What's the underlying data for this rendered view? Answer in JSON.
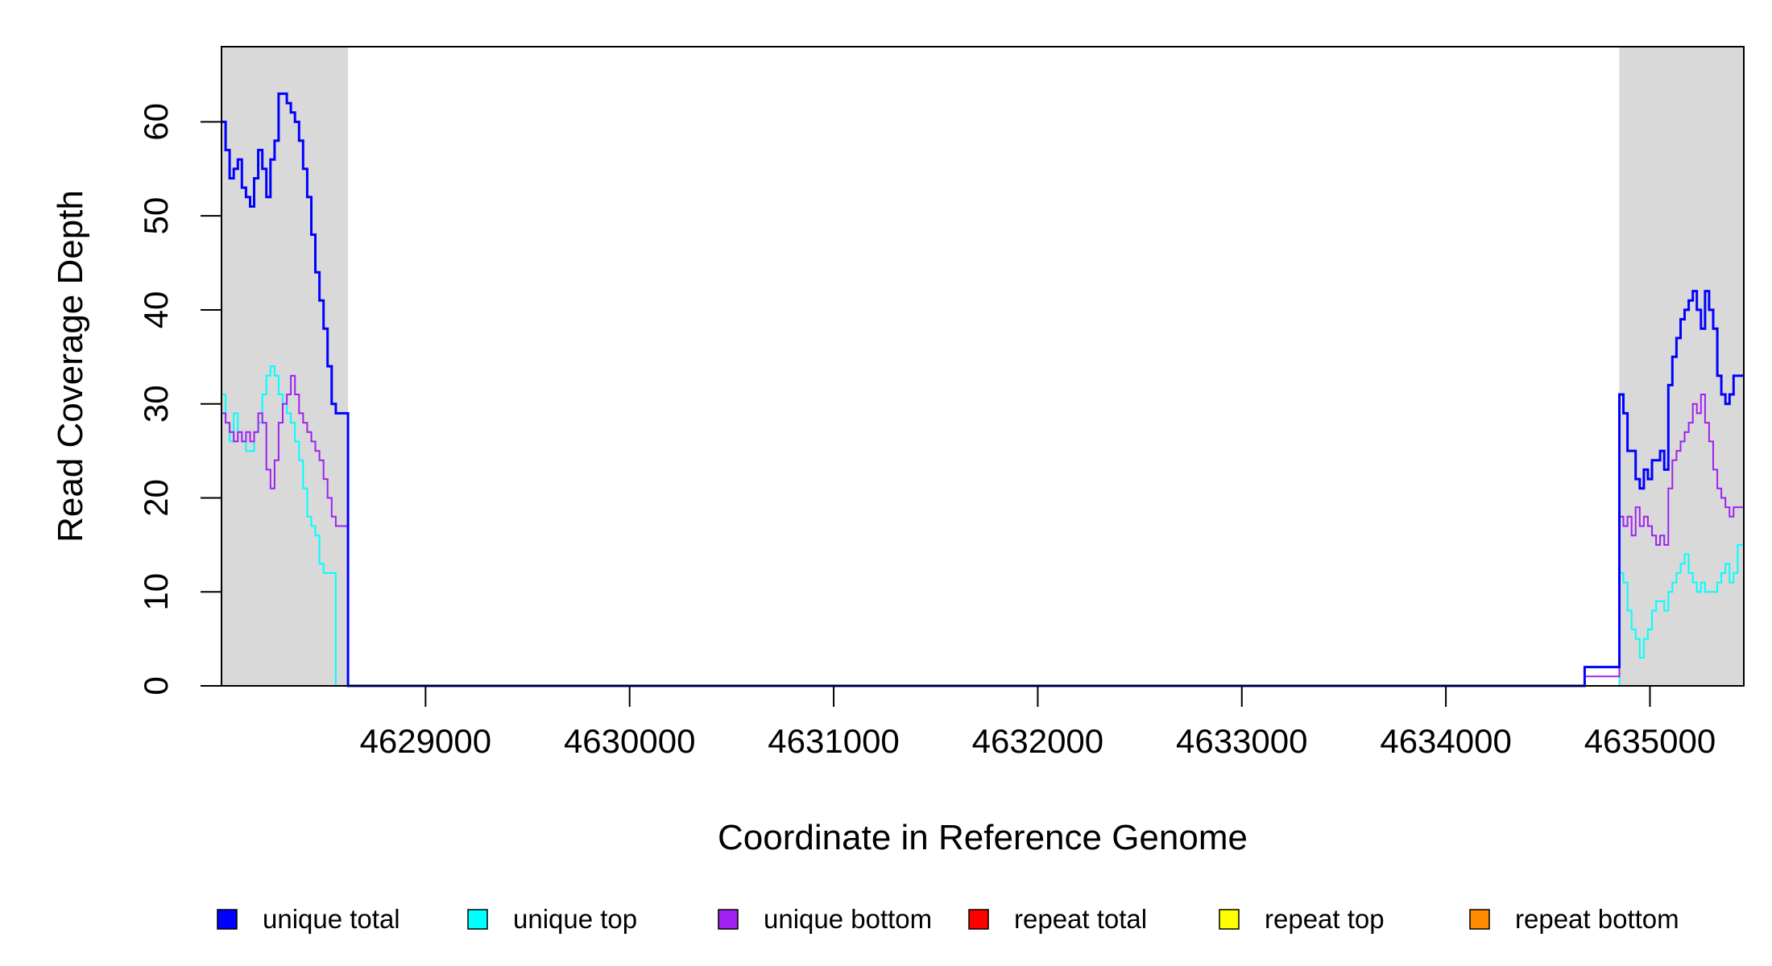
{
  "chart_data": {
    "type": "line",
    "title": "",
    "xlabel": "Coordinate in Reference Genome",
    "ylabel": "Read Coverage Depth",
    "xlim": [
      4628000,
      4635460
    ],
    "ylim": [
      0,
      68
    ],
    "x_ticks": [
      4629000,
      4630000,
      4631000,
      4632000,
      4633000,
      4634000,
      4635000
    ],
    "y_ticks": [
      0,
      10,
      20,
      30,
      40,
      50,
      60
    ],
    "x_tick_labels": [
      "4629000",
      "4630000",
      "4631000",
      "4632000",
      "4633000",
      "4634000",
      "4635000"
    ],
    "y_tick_labels": [
      "0",
      "10",
      "20",
      "30",
      "40",
      "50",
      "60"
    ],
    "grid": false,
    "legend_position": "bottom",
    "shaded_regions": [
      {
        "x0": 4628000,
        "x1": 4628620,
        "color": "#d9d9d9"
      },
      {
        "x0": 4634850,
        "x1": 4635460,
        "color": "#d9d9d9"
      }
    ],
    "series": [
      {
        "name": "unique total",
        "color": "#0000ff",
        "width": 3,
        "x": [
          4628000,
          4628020,
          4628040,
          4628060,
          4628080,
          4628100,
          4628120,
          4628140,
          4628160,
          4628180,
          4628200,
          4628220,
          4628240,
          4628260,
          4628280,
          4628300,
          4628320,
          4628340,
          4628360,
          4628380,
          4628400,
          4628420,
          4628440,
          4628460,
          4628480,
          4628500,
          4628520,
          4628540,
          4628560,
          4628580,
          4628600,
          4628620,
          4628640,
          4634680,
          4634850,
          4634870,
          4634890,
          4634910,
          4634930,
          4634950,
          4634970,
          4634990,
          4635010,
          4635030,
          4635050,
          4635070,
          4635090,
          4635110,
          4635130,
          4635150,
          4635170,
          4635190,
          4635210,
          4635230,
          4635250,
          4635270,
          4635290,
          4635310,
          4635330,
          4635350,
          4635370,
          4635390,
          4635410,
          4635430,
          4635460
        ],
        "y": [
          60,
          57,
          54,
          55,
          56,
          53,
          52,
          51,
          54,
          57,
          55,
          52,
          56,
          58,
          63,
          63,
          62,
          61,
          60,
          58,
          55,
          52,
          48,
          44,
          41,
          38,
          34,
          30,
          29,
          29,
          29,
          0,
          0,
          2,
          31,
          29,
          25,
          25,
          22,
          21,
          23,
          22,
          24,
          24,
          25,
          23,
          32,
          35,
          37,
          39,
          40,
          41,
          42,
          40,
          38,
          42,
          40,
          38,
          33,
          31,
          30,
          31,
          33,
          33,
          33
        ]
      },
      {
        "name": "unique top",
        "color": "#00ffff",
        "width": 2,
        "x": [
          4628000,
          4628020,
          4628040,
          4628060,
          4628080,
          4628100,
          4628120,
          4628140,
          4628160,
          4628180,
          4628200,
          4628220,
          4628240,
          4628260,
          4628280,
          4628300,
          4628320,
          4628340,
          4628360,
          4628380,
          4628400,
          4628420,
          4628440,
          4628460,
          4628480,
          4628500,
          4628520,
          4628540,
          4628560,
          4628580,
          4628600,
          4628620,
          4628640,
          4634680,
          4634850,
          4634870,
          4634890,
          4634910,
          4634930,
          4634950,
          4634970,
          4634990,
          4635010,
          4635030,
          4635050,
          4635070,
          4635090,
          4635110,
          4635130,
          4635150,
          4635170,
          4635190,
          4635210,
          4635230,
          4635250,
          4635270,
          4635290,
          4635310,
          4635330,
          4635350,
          4635370,
          4635390,
          4635410,
          4635430,
          4635460
        ],
        "y": [
          31,
          28,
          26,
          29,
          27,
          26,
          25,
          25,
          27,
          28,
          31,
          33,
          34,
          33,
          31,
          30,
          29,
          28,
          26,
          24,
          21,
          18,
          17,
          16,
          13,
          12,
          12,
          12,
          0,
          0,
          0,
          0,
          0,
          0,
          12,
          11,
          8,
          6,
          5,
          3,
          5,
          6,
          8,
          9,
          9,
          8,
          10,
          11,
          12,
          13,
          14,
          12,
          11,
          10,
          11,
          10,
          10,
          10,
          11,
          12,
          13,
          11,
          12,
          15,
          15
        ]
      },
      {
        "name": "unique bottom",
        "color": "#a020f0",
        "width": 2,
        "x": [
          4628000,
          4628020,
          4628040,
          4628060,
          4628080,
          4628100,
          4628120,
          4628140,
          4628160,
          4628180,
          4628200,
          4628220,
          4628240,
          4628260,
          4628280,
          4628300,
          4628320,
          4628340,
          4628360,
          4628380,
          4628400,
          4628420,
          4628440,
          4628460,
          4628480,
          4628500,
          4628520,
          4628540,
          4628560,
          4628580,
          4628600,
          4628620,
          4628640,
          4634680,
          4634850,
          4634870,
          4634890,
          4634910,
          4634930,
          4634950,
          4634970,
          4634990,
          4635010,
          4635030,
          4635050,
          4635070,
          4635090,
          4635110,
          4635130,
          4635150,
          4635170,
          4635190,
          4635210,
          4635230,
          4635250,
          4635270,
          4635290,
          4635310,
          4635330,
          4635350,
          4635370,
          4635390,
          4635410,
          4635430,
          4635460
        ],
        "y": [
          29,
          28,
          27,
          26,
          27,
          26,
          27,
          26,
          27,
          29,
          28,
          23,
          21,
          24,
          28,
          30,
          31,
          33,
          31,
          29,
          28,
          27,
          26,
          25,
          24,
          22,
          20,
          18,
          17,
          17,
          17,
          0,
          0,
          1,
          18,
          17,
          18,
          16,
          19,
          17,
          18,
          17,
          16,
          15,
          16,
          15,
          21,
          24,
          25,
          26,
          27,
          28,
          30,
          29,
          31,
          28,
          26,
          23,
          21,
          20,
          19,
          18,
          19,
          19,
          19
        ]
      },
      {
        "name": "repeat total",
        "color": "#ff0000",
        "width": 2,
        "x": [
          4628000,
          4635460
        ],
        "y": [
          0,
          0
        ]
      },
      {
        "name": "repeat top",
        "color": "#ffff00",
        "width": 2,
        "x": [
          4628000,
          4635460
        ],
        "y": [
          0,
          0
        ]
      },
      {
        "name": "repeat bottom",
        "color": "#ff8c00",
        "width": 2,
        "x": [
          4628000,
          4635460
        ],
        "y": [
          0,
          0
        ]
      }
    ]
  }
}
